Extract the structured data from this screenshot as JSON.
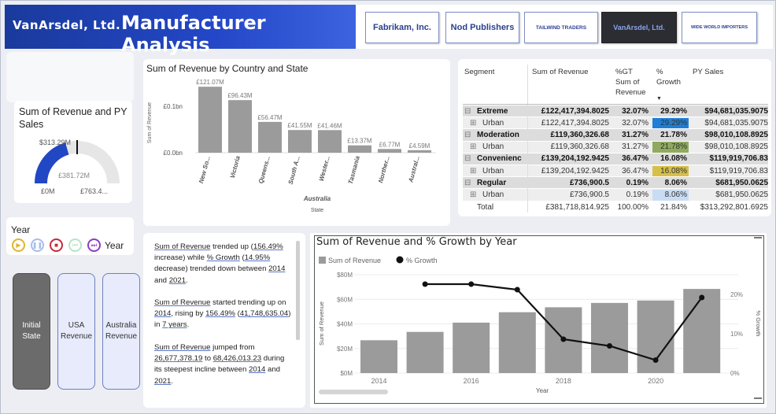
{
  "header": {
    "brand": "VanArsdel, Ltd.",
    "title": "Manufacturer Analysis",
    "manufacturers": [
      {
        "label": "Fabrikam, Inc.",
        "selected": false
      },
      {
        "label": "Nod Publishers",
        "selected": false
      },
      {
        "label": "TAILWIND TRADERS",
        "selected": false
      },
      {
        "label": "VanArsdel, Ltd.",
        "selected": true
      },
      {
        "label": "WIDE WORLD IMPORTERS",
        "selected": false
      }
    ]
  },
  "gauge": {
    "title": "Sum of Revenue and PY Sales",
    "value_label": "$313.29M",
    "target_label": "£381.72M",
    "min_label": "£0M",
    "max_label": "£763.4...",
    "value": 313.29,
    "target": 381.72,
    "max": 763.44
  },
  "year_slicer": {
    "label": "Year",
    "field_label": "Year",
    "controls": [
      "play",
      "pause",
      "stop",
      "previous",
      "next"
    ]
  },
  "bookmarks": [
    {
      "label": "Initial State",
      "active": true
    },
    {
      "label": "USA Revenue",
      "active": false
    },
    {
      "label": "Australia Revenue",
      "active": false
    }
  ],
  "bar_chart": {
    "title": "Sum of Revenue by Country and State",
    "ylabel": "Sum of Revenue",
    "xlabel": "State",
    "group_label": "Australia",
    "y_ticks": [
      "£0.1bn",
      "£0.0bn"
    ],
    "chart_data": {
      "type": "bar",
      "title": "Sum of Revenue by Country and State",
      "xlabel": "State",
      "ylabel": "Sum of Revenue",
      "group": "Australia",
      "categories": [
        "New So...",
        "Victoria",
        "Queens...",
        "South A...",
        "Wester...",
        "Tasmania",
        "Norther...",
        "Austral..."
      ],
      "values": [
        121.07,
        96.43,
        56.47,
        41.55,
        41.46,
        13.37,
        6.77,
        4.59
      ],
      "value_labels": [
        "£121.07M",
        "£96.43M",
        "£56.47M",
        "£41.55M",
        "£41.46M",
        "£13.37M",
        "£6.77M",
        "£4.59M"
      ],
      "units": "M",
      "ylim": [
        0,
        130
      ],
      "color": "#9b9b9b"
    }
  },
  "narrative": {
    "p1": [
      {
        "t": "Sum of Revenue",
        "u": true
      },
      {
        "t": " trended up (",
        "u": false
      },
      {
        "t": "156.49%",
        "u": true
      },
      {
        "t": " increase) while ",
        "u": false
      },
      {
        "t": "% Growth",
        "u": true
      },
      {
        "t": " (",
        "u": false
      },
      {
        "t": "14.95%",
        "u": true
      },
      {
        "t": " decrease) trended down between ",
        "u": false
      },
      {
        "t": "2014",
        "u": true
      },
      {
        "t": " and ",
        "u": false
      },
      {
        "t": "2021",
        "u": true
      },
      {
        "t": ".",
        "u": false
      }
    ],
    "p2": [
      {
        "t": "Sum of Revenue",
        "u": true
      },
      {
        "t": " started trending up on ",
        "u": false
      },
      {
        "t": "2014",
        "u": true
      },
      {
        "t": ", rising by ",
        "u": false
      },
      {
        "t": "156.49%",
        "u": true
      },
      {
        "t": " (",
        "u": false
      },
      {
        "t": "41,748,635.04",
        "u": true
      },
      {
        "t": ") in ",
        "u": false
      },
      {
        "t": "7 years",
        "u": true
      },
      {
        "t": ".",
        "u": false
      }
    ],
    "p3": [
      {
        "t": "Sum of Revenue",
        "u": true
      },
      {
        "t": " jumped from ",
        "u": false
      },
      {
        "t": "26,677,378.19",
        "u": true
      },
      {
        "t": " to ",
        "u": false
      },
      {
        "t": "68,426,013.23",
        "u": true
      },
      {
        "t": " during its steepest incline between ",
        "u": false
      },
      {
        "t": "2014",
        "u": true
      },
      {
        "t": " and ",
        "u": false
      },
      {
        "t": "2021",
        "u": true
      },
      {
        "t": ".",
        "u": false
      }
    ]
  },
  "matrix": {
    "headers": [
      "Segment",
      "Sum of Revenue",
      "%GT Sum of Revenue",
      "% Growth",
      "PY Sales"
    ],
    "rows": [
      {
        "label": "Extreme",
        "level": 0,
        "expander": "⊟",
        "revenue": "£122,417,394.8025",
        "gt": "32.07%",
        "growth": "29.29%",
        "py": "$94,681,035.9075",
        "growth_bg": ""
      },
      {
        "label": "Urban",
        "level": 1,
        "expander": "⊞",
        "revenue": "£122,417,394.8025",
        "gt": "32.07%",
        "growth": "29.29%",
        "py": "$94,681,035.9075",
        "growth_bg": "#1f7fd6"
      },
      {
        "label": "Moderation",
        "level": 0,
        "expander": "⊟",
        "revenue": "£119,360,326.68",
        "gt": "31.27%",
        "growth": "21.78%",
        "py": "$98,010,108.8925",
        "growth_bg": ""
      },
      {
        "label": "Urban",
        "level": 1,
        "expander": "⊞",
        "revenue": "£119,360,326.68",
        "gt": "31.27%",
        "growth": "21.78%",
        "py": "$98,010,108.8925",
        "growth_bg": "#8faa5e"
      },
      {
        "label": "Convenienc",
        "level": 0,
        "expander": "⊟",
        "revenue": "£139,204,192.9425",
        "gt": "36.47%",
        "growth": "16.08%",
        "py": "$119,919,706.83",
        "growth_bg": ""
      },
      {
        "label": "Urban",
        "level": 1,
        "expander": "⊞",
        "revenue": "£139,204,192.9425",
        "gt": "36.47%",
        "growth": "16.08%",
        "py": "$119,919,706.83",
        "growth_bg": "#d6c04a"
      },
      {
        "label": "Regular",
        "level": 0,
        "expander": "⊟",
        "revenue": "£736,900.5",
        "gt": "0.19%",
        "growth": "8.06%",
        "py": "$681,950.0625",
        "growth_bg": ""
      },
      {
        "label": "Urban",
        "level": 1,
        "expander": "⊞",
        "revenue": "£736,900.5",
        "gt": "0.19%",
        "growth": "8.06%",
        "py": "$681,950.0625",
        "growth_bg": "#c9dcf3"
      }
    ],
    "total": {
      "label": "Total",
      "revenue": "£381,718,814.925",
      "gt": "100.00%",
      "growth": "21.84%",
      "py": "$313,292,801.6925"
    }
  },
  "combo_chart": {
    "title": "Sum of Revenue and % Growth by Year",
    "legend": [
      "Sum of Revenue",
      "% Growth"
    ],
    "ylabel": "Sum of Revenue",
    "y2label": "% Growth",
    "xlabel": "Year",
    "y_ticks": [
      "$80M",
      "$60M",
      "$40M",
      "$20M",
      "$0M"
    ],
    "y2_ticks": [
      "20%",
      "10%",
      "0%"
    ],
    "x_ticks": [
      "2014",
      "2016",
      "2018",
      "2020"
    ],
    "chart_data": {
      "type": "bar",
      "title": "Sum of Revenue and % Growth by Year",
      "categories": [
        2014,
        2015,
        2016,
        2017,
        2018,
        2019,
        2020,
        2021
      ],
      "xlabel": "Year",
      "ylabel": "Sum of Revenue",
      "y2label": "% Growth",
      "ylim": [
        0,
        80
      ],
      "y2lim": [
        0,
        25
      ],
      "series": [
        {
          "name": "Sum of Revenue",
          "type": "bar",
          "axis": "y",
          "units": "M",
          "color": "#9b9b9b",
          "values": [
            26.7,
            33.5,
            41.0,
            49.5,
            53.5,
            57.0,
            59.0,
            68.4
          ]
        },
        {
          "name": "% Growth",
          "type": "line",
          "axis": "y2",
          "units": "%",
          "color": "#111111",
          "values": [
            null,
            22.6,
            22.6,
            21.2,
            8.6,
            6.9,
            3.3,
            19.2
          ]
        }
      ]
    }
  }
}
